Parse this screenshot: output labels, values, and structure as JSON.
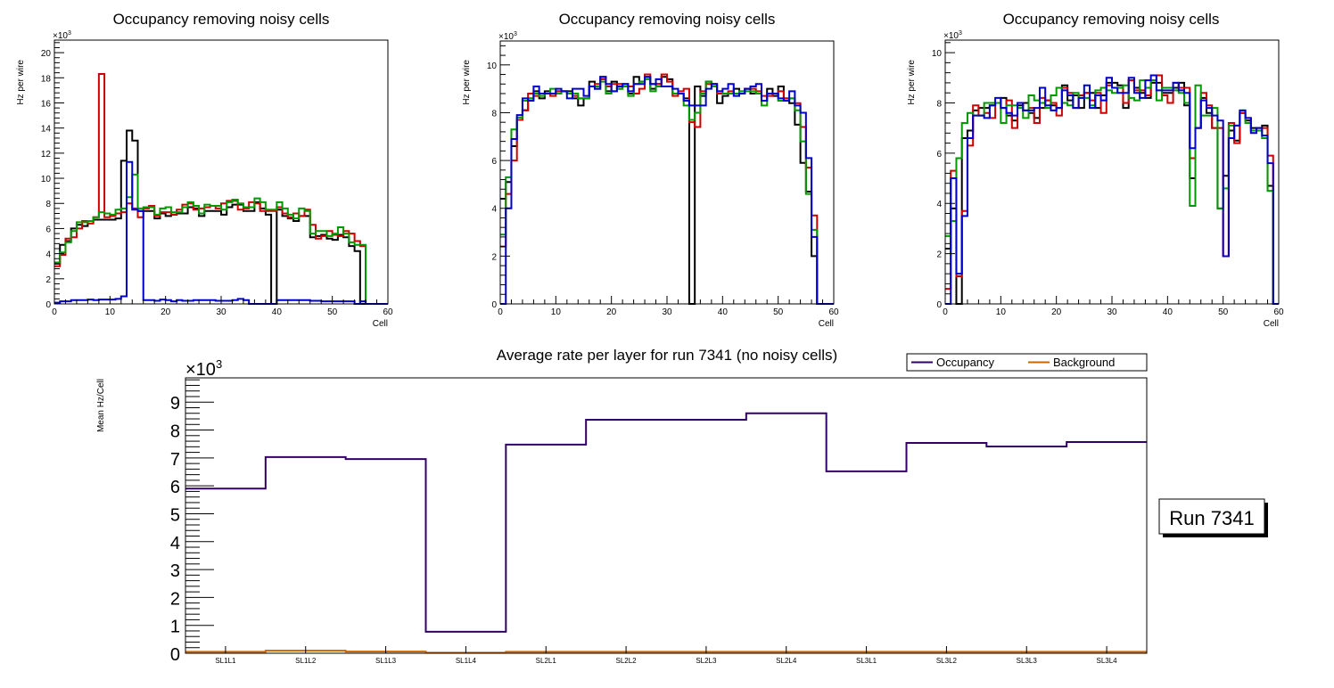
{
  "chart_data": [
    {
      "type": "line",
      "subtype": "step-histogram",
      "title": "Occupancy removing noisy cells",
      "xlabel": "Cell",
      "ylabel": "Hz per wire",
      "y_multiplier_label": "×10",
      "y_multiplier_exp": "3",
      "xlim": [
        0,
        60
      ],
      "ylim": [
        0,
        21
      ],
      "x_ticks": [
        0,
        10,
        20,
        30,
        40,
        50,
        60
      ],
      "y_ticks": [
        0,
        2,
        4,
        6,
        8,
        10,
        12,
        14,
        16,
        18,
        20
      ],
      "grid": false,
      "series": [
        {
          "name": "black",
          "color": "#000000",
          "values": [
            3.2,
            4.7,
            5.0,
            6.0,
            6.3,
            6.2,
            6.6,
            6.7,
            6.7,
            6.7,
            6.7,
            6.8,
            11.4,
            13.8,
            13.0,
            7.4,
            7.4,
            7.4,
            6.8,
            7.2,
            7.0,
            7.1,
            7.2,
            7.2,
            7.7,
            7.6,
            7.0,
            7.4,
            7.4,
            7.4,
            7.1,
            7.7,
            7.9,
            7.9,
            7.4,
            7.4,
            8.1,
            7.6,
            7.1,
            0,
            7.5,
            7.0,
            6.8,
            6.6,
            7.0,
            7.0,
            5.3,
            5.4,
            5.5,
            5.2,
            5.1,
            5.5,
            5.3,
            4.6,
            4.2,
            0,
            0,
            0,
            0,
            0
          ]
        },
        {
          "name": "red",
          "color": "#cc0000",
          "values": [
            3.0,
            3.9,
            5.2,
            5.3,
            6.0,
            6.6,
            6.4,
            6.9,
            18.3,
            6.9,
            7.0,
            7.2,
            7.3,
            8.0,
            7.6,
            6.9,
            7.6,
            7.8,
            7.0,
            7.3,
            7.3,
            7.1,
            7.5,
            7.9,
            8.0,
            7.5,
            7.6,
            7.7,
            7.8,
            7.6,
            8.0,
            8.2,
            8.2,
            7.5,
            7.6,
            8.1,
            8.0,
            7.4,
            7.4,
            7.4,
            7.7,
            7.2,
            6.9,
            7.2,
            7.0,
            7.5,
            6.3,
            5.2,
            5.4,
            5.8,
            5.5,
            5.4,
            5.8,
            5.6,
            5.0,
            4.6,
            0,
            0,
            0,
            0
          ]
        },
        {
          "name": "green",
          "color": "#009900",
          "values": [
            3.3,
            4.1,
            4.9,
            5.8,
            6.5,
            6.5,
            6.6,
            6.9,
            7.3,
            7.2,
            7.1,
            7.5,
            7.6,
            8.5,
            10.3,
            7.6,
            7.7,
            7.7,
            7.1,
            7.6,
            7.7,
            7.3,
            7.3,
            7.7,
            8.1,
            7.8,
            7.2,
            7.9,
            7.8,
            7.8,
            7.5,
            8.1,
            8.3,
            8.0,
            7.7,
            7.7,
            8.4,
            8.1,
            7.5,
            7.5,
            8.1,
            7.6,
            7.1,
            6.8,
            7.6,
            7.4,
            5.6,
            5.8,
            5.8,
            5.4,
            5.6,
            6.1,
            5.6,
            4.9,
            4.7,
            4.7,
            0,
            0,
            0,
            0
          ]
        },
        {
          "name": "blue",
          "color": "#0000cc",
          "values": [
            0.1,
            0.2,
            0.2,
            0.3,
            0.3,
            0.3,
            0.35,
            0.3,
            0.35,
            0.35,
            0.35,
            0.4,
            0.6,
            11.3,
            7.5,
            7.4,
            0.3,
            0.3,
            0.25,
            0.35,
            0.3,
            0.2,
            0.3,
            0.25,
            0.25,
            0.3,
            0.3,
            0.3,
            0.3,
            0.25,
            0.25,
            0.25,
            0.3,
            0.4,
            0.3,
            0,
            0,
            0,
            0,
            0,
            0.3,
            0.3,
            0.3,
            0.3,
            0.3,
            0.3,
            0.25,
            0.25,
            0.2,
            0.2,
            0.2,
            0.2,
            0.2,
            0.2,
            0,
            0.2,
            0,
            0,
            0,
            0
          ]
        }
      ]
    },
    {
      "type": "line",
      "subtype": "step-histogram",
      "title": "Occupancy removing noisy cells",
      "xlabel": "Cell",
      "ylabel": "Hz per wire",
      "y_multiplier_label": "×10",
      "y_multiplier_exp": "3",
      "xlim": [
        0,
        60
      ],
      "ylim": [
        0,
        11
      ],
      "x_ticks": [
        0,
        10,
        20,
        30,
        40,
        50,
        60
      ],
      "y_ticks": [
        0,
        2,
        4,
        6,
        8,
        10
      ],
      "grid": false,
      "series": [
        {
          "name": "black",
          "color": "#000000",
          "values": [
            4.4,
            5.1,
            6.6,
            7.7,
            8.1,
            8.6,
            8.9,
            8.6,
            8.9,
            8.8,
            8.9,
            8.9,
            8.9,
            8.6,
            8.3,
            8.6,
            9.3,
            9.0,
            9.5,
            8.9,
            9.3,
            9.0,
            9.2,
            8.8,
            9.5,
            9.3,
            9.5,
            9.0,
            9.2,
            9.5,
            9.4,
            8.8,
            8.8,
            8.6,
            0,
            9.1,
            8.7,
            9.3,
            9.2,
            8.4,
            8.7,
            8.8,
            9.0,
            8.8,
            9.0,
            8.8,
            8.8,
            8.5,
            9.0,
            8.7,
            9.1,
            8.6,
            8.4,
            7.5,
            5.9,
            4.7,
            2.0,
            0,
            0,
            0
          ]
        },
        {
          "name": "red",
          "color": "#cc0000",
          "values": [
            2.4,
            4.6,
            6.0,
            7.7,
            8.1,
            8.8,
            8.7,
            8.8,
            8.8,
            8.7,
            8.9,
            8.9,
            8.8,
            8.7,
            8.6,
            8.6,
            9.1,
            9.2,
            9.4,
            9.1,
            9.2,
            9.2,
            9.1,
            9.1,
            8.8,
            9.0,
            9.6,
            9.2,
            9.2,
            9.6,
            9.3,
            8.7,
            8.9,
            9.0,
            7.6,
            7.4,
            8.9,
            9.2,
            9.2,
            8.8,
            8.8,
            8.9,
            8.8,
            8.8,
            9.0,
            9.0,
            8.9,
            8.7,
            8.7,
            8.8,
            8.9,
            8.6,
            8.6,
            8.4,
            7.4,
            5.7,
            3.7,
            0,
            0,
            0
          ]
        },
        {
          "name": "green",
          "color": "#009900",
          "values": [
            2.9,
            5.3,
            7.3,
            7.8,
            8.5,
            8.6,
            8.8,
            8.7,
            8.8,
            9.0,
            8.8,
            8.9,
            8.8,
            8.8,
            8.6,
            8.6,
            9.1,
            9.1,
            9.3,
            8.8,
            8.9,
            9.0,
            9.1,
            8.7,
            9.2,
            9.3,
            9.4,
            8.9,
            9.1,
            9.1,
            9.1,
            8.8,
            8.8,
            8.3,
            7.7,
            8.0,
            8.8,
            9.3,
            9.1,
            8.9,
            8.8,
            8.8,
            8.8,
            8.9,
            8.9,
            8.9,
            8.8,
            8.3,
            8.8,
            8.8,
            8.5,
            8.5,
            8.6,
            8.1,
            6.8,
            4.6,
            3.1,
            0,
            0,
            0
          ]
        },
        {
          "name": "blue",
          "color": "#0000cc",
          "values": [
            0,
            4.0,
            6.9,
            7.9,
            8.6,
            8.5,
            9.1,
            8.8,
            8.8,
            8.8,
            9.0,
            8.9,
            8.6,
            9.0,
            9.0,
            8.7,
            9.1,
            9.0,
            9.5,
            9.2,
            8.9,
            9.1,
            9.2,
            8.9,
            9.2,
            9.2,
            9.5,
            9.2,
            9.4,
            9.1,
            9.1,
            9.0,
            8.8,
            8.5,
            8.3,
            8.3,
            8.3,
            9.0,
            9.2,
            8.9,
            9.0,
            9.2,
            8.7,
            8.8,
            9.0,
            9.1,
            9.2,
            8.5,
            8.8,
            8.8,
            8.6,
            8.5,
            8.9,
            8.3,
            8.0,
            6.1,
            2.8,
            0,
            0,
            0
          ]
        }
      ]
    },
    {
      "type": "line",
      "subtype": "step-histogram",
      "title": "Occupancy removing noisy cells",
      "xlabel": "Cell",
      "ylabel": "Hz per wire",
      "y_multiplier_label": "×10",
      "y_multiplier_exp": "3",
      "xlim": [
        0,
        60
      ],
      "ylim": [
        0,
        10.5
      ],
      "x_ticks": [
        0,
        10,
        20,
        30,
        40,
        50,
        60
      ],
      "y_ticks": [
        0,
        2,
        4,
        6,
        8,
        10
      ],
      "grid": false,
      "series": [
        {
          "name": "black",
          "color": "#000000",
          "values": [
            2.2,
            3.8,
            0,
            6.6,
            6.9,
            7.7,
            7.8,
            7.8,
            7.9,
            8.0,
            8.2,
            7.5,
            7.3,
            7.9,
            8.0,
            7.6,
            7.4,
            7.8,
            8.1,
            7.9,
            7.8,
            8.7,
            8.1,
            8.3,
            7.8,
            8.4,
            8.4,
            7.8,
            8.3,
            8.8,
            8.8,
            8.7,
            7.8,
            8.9,
            8.6,
            8.4,
            8.2,
            8.8,
            8.8,
            8.4,
            8.4,
            8.6,
            8.8,
            7.9,
            5.0,
            7.0,
            8.2,
            7.6,
            7.0,
            3.8,
            5.1,
            6.9,
            6.5,
            7.6,
            7.3,
            7.0,
            7.0,
            7.1,
            4.7,
            0
          ]
        },
        {
          "name": "red",
          "color": "#cc0000",
          "values": [
            0.6,
            5.3,
            1.1,
            3.7,
            6.3,
            7.9,
            7.5,
            7.6,
            7.4,
            8.0,
            7.8,
            8.1,
            7.0,
            8.0,
            7.7,
            7.8,
            7.2,
            8.2,
            8.1,
            8.0,
            7.5,
            8.6,
            8.4,
            7.8,
            8.3,
            8.4,
            8.1,
            8.4,
            7.6,
            8.7,
            8.6,
            8.6,
            8.0,
            8.9,
            8.5,
            8.5,
            8.3,
            8.9,
            9.1,
            8.3,
            8.0,
            8.8,
            8.6,
            8.6,
            5.8,
            7.0,
            8.4,
            7.9,
            7.0,
            7.0,
            1.9,
            7.2,
            6.4,
            7.6,
            7.4,
            6.9,
            6.9,
            7.0,
            5.9,
            0
          ]
        },
        {
          "name": "green",
          "color": "#009900",
          "values": [
            2.7,
            3.3,
            5.8,
            7.2,
            7.6,
            7.5,
            7.5,
            8.0,
            8.0,
            8.0,
            7.2,
            7.9,
            7.9,
            7.8,
            7.4,
            8.3,
            8.1,
            8.0,
            7.8,
            8.3,
            8.6,
            8.0,
            7.9,
            8.4,
            8.2,
            8.2,
            7.9,
            8.5,
            8.6,
            8.5,
            8.4,
            8.6,
            8.7,
            8.2,
            8.1,
            8.9,
            8.6,
            8.9,
            8.1,
            8.6,
            8.6,
            8.5,
            8.4,
            8.0,
            3.9,
            8.7,
            7.5,
            7.5,
            7.8,
            3.8,
            4.6,
            7.1,
            7.1,
            7.7,
            7.2,
            6.9,
            6.9,
            6.6,
            4.5,
            0
          ]
        },
        {
          "name": "blue",
          "color": "#0000cc",
          "values": [
            0,
            5.0,
            1.2,
            3.5,
            6.6,
            7.5,
            7.5,
            7.4,
            7.9,
            8.2,
            7.8,
            7.6,
            7.5,
            8.0,
            7.7,
            7.7,
            7.8,
            8.6,
            7.9,
            7.7,
            7.8,
            8.5,
            8.3,
            7.8,
            8.2,
            8.7,
            7.8,
            8.3,
            8.1,
            9.0,
            8.6,
            8.4,
            8.4,
            9.0,
            8.4,
            8.2,
            8.9,
            9.1,
            8.5,
            8.5,
            8.5,
            8.8,
            8.5,
            8.4,
            6.2,
            7.0,
            8.1,
            7.8,
            7.5,
            7.3,
            1.9,
            6.6,
            7.1,
            7.7,
            7.4,
            6.8,
            7.0,
            6.7,
            5.6,
            0
          ]
        }
      ]
    },
    {
      "type": "line",
      "subtype": "step-histogram",
      "title": "Average rate per layer for run 7341 (no noisy cells)",
      "xlabel": "",
      "ylabel": "Mean Hz/Cell",
      "y_multiplier_label": "×10",
      "y_multiplier_exp": "3",
      "ylim": [
        0,
        9.87
      ],
      "y_ticks": [
        0,
        1,
        2,
        3,
        4,
        5,
        6,
        7,
        8,
        9
      ],
      "grid": false,
      "legend_position": "top-right",
      "categories": [
        "SL1L1",
        "SL1L2",
        "SL1L3",
        "SL1L4",
        "SL2L1",
        "SL2L2",
        "SL2L3",
        "SL2L4",
        "SL3L1",
        "SL3L2",
        "SL3L3",
        "SL3L4"
      ],
      "series": [
        {
          "name": "Occupancy",
          "color": "#330066",
          "values": [
            5.9,
            7.03,
            6.96,
            0.77,
            7.48,
            8.37,
            8.37,
            8.6,
            6.52,
            7.54,
            7.41,
            7.57
          ]
        },
        {
          "name": "Background",
          "color": "#cc6600",
          "values": [
            0.05,
            0.09,
            0.06,
            0.02,
            0.05,
            0.05,
            0.05,
            0.05,
            0.05,
            0.05,
            0.05,
            0.05
          ]
        }
      ]
    }
  ],
  "annotation": {
    "run_label": "Run 7341"
  }
}
